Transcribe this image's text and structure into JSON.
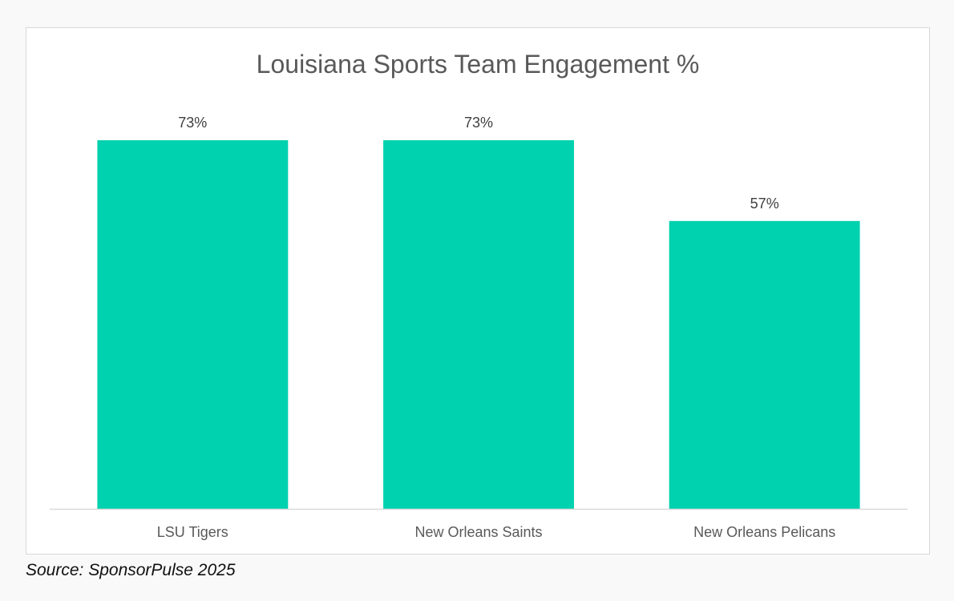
{
  "chart_data": {
    "type": "bar",
    "title": "Louisiana Sports Team Engagement %",
    "categories": [
      "LSU Tigers",
      "New Orleans Saints",
      "New Orleans Pelicans"
    ],
    "values": [
      73,
      73,
      57
    ],
    "value_labels": [
      "73%",
      "73%",
      "57%"
    ],
    "xlabel": "",
    "ylabel": "",
    "ylim": [
      0,
      73
    ],
    "grid": false,
    "legend": "none",
    "bar_color": "#00d1ae"
  },
  "source": "Source: SponsorPulse 2025"
}
